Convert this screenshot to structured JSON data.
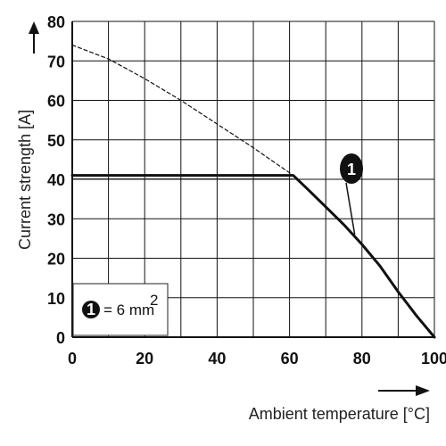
{
  "chart_data": {
    "type": "line",
    "xlabel": "Ambient temperature [°C]",
    "ylabel": "Current strength [A]",
    "xlim": [
      0,
      100
    ],
    "ylim": [
      0,
      80
    ],
    "x_ticks": [
      0,
      20,
      40,
      60,
      80,
      100
    ],
    "y_ticks": [
      0,
      10,
      20,
      30,
      40,
      50,
      60,
      70,
      80
    ],
    "grid_x_step": 10,
    "grid_y_step": 10,
    "grid": true,
    "series": [
      {
        "name": "1",
        "style": "solid",
        "x": [
          0,
          61,
          65,
          70,
          75,
          80,
          85,
          90,
          95,
          100
        ],
        "y": [
          41,
          41,
          37.5,
          33,
          28.5,
          23.5,
          18,
          11.5,
          5.5,
          0
        ]
      },
      {
        "style": "dashed",
        "x": [
          0,
          10,
          20,
          30,
          40,
          50,
          61
        ],
        "y": [
          74,
          70.5,
          65.5,
          60,
          54,
          48,
          41
        ]
      }
    ],
    "callout": {
      "label": "1",
      "series": "1",
      "points_to": [
        78,
        26
      ]
    },
    "legend": {
      "marker": "1",
      "text": "= 6 mm",
      "superscript": "2",
      "placement": "bottom-left"
    }
  }
}
